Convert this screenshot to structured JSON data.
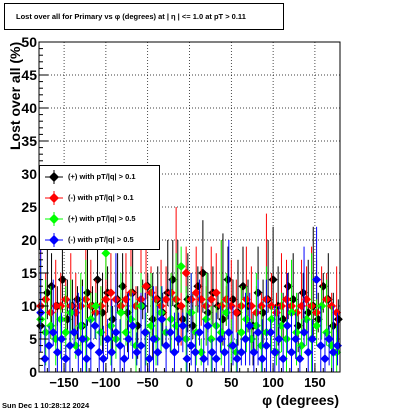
{
  "page": {
    "title": "Lost over all for Primary vs φ (degrees) at |  η  | <= 1.0 at pT > 0.11",
    "timestamp": "Sun Dec  1 10:28:12 2024"
  },
  "chart_data": {
    "type": "scatter",
    "xlabel": "φ (degrees)",
    "ylabel": "Lost over all (%)",
    "xlim": [
      -180,
      180
    ],
    "ylim": [
      0,
      50
    ],
    "x_ticks": [
      -150,
      -100,
      -50,
      0,
      50,
      100,
      150
    ],
    "y_ticks": [
      0,
      5,
      10,
      15,
      20,
      25,
      30,
      35,
      40,
      45,
      50
    ],
    "grid": true,
    "legend_position": "left-middle",
    "series": [
      {
        "name": "(+) with pT/|q| > 0.1",
        "color": "#000000",
        "marker": "diamond",
        "points": [
          [
            -178,
            7
          ],
          [
            -170,
            12
          ],
          [
            -165,
            13
          ],
          [
            -158,
            10
          ],
          [
            -152,
            14
          ],
          [
            -146,
            8
          ],
          [
            -140,
            10
          ],
          [
            -134,
            11
          ],
          [
            -128,
            7
          ],
          [
            -122,
            12
          ],
          [
            -116,
            10
          ],
          [
            -110,
            14
          ],
          [
            -104,
            9
          ],
          [
            -98,
            12
          ],
          [
            -92,
            8
          ],
          [
            -86,
            11
          ],
          [
            -80,
            13
          ],
          [
            -74,
            9
          ],
          [
            -68,
            12
          ],
          [
            -62,
            7
          ],
          [
            -56,
            10
          ],
          [
            -50,
            13
          ],
          [
            -44,
            8
          ],
          [
            -38,
            11
          ],
          [
            -32,
            9
          ],
          [
            -26,
            12
          ],
          [
            -20,
            14
          ],
          [
            -14,
            10
          ],
          [
            -8,
            8
          ],
          [
            -2,
            11
          ],
          [
            4,
            7
          ],
          [
            10,
            13
          ],
          [
            16,
            15
          ],
          [
            22,
            9
          ],
          [
            28,
            12
          ],
          [
            34,
            10
          ],
          [
            40,
            8
          ],
          [
            46,
            14
          ],
          [
            52,
            11
          ],
          [
            58,
            9
          ],
          [
            64,
            13
          ],
          [
            70,
            10
          ],
          [
            76,
            7
          ],
          [
            82,
            12
          ],
          [
            88,
            9
          ],
          [
            94,
            11
          ],
          [
            100,
            14
          ],
          [
            106,
            10
          ],
          [
            112,
            8
          ],
          [
            118,
            13
          ],
          [
            124,
            11
          ],
          [
            130,
            7
          ],
          [
            136,
            12
          ],
          [
            142,
            9
          ],
          [
            148,
            10
          ],
          [
            154,
            8
          ],
          [
            160,
            13
          ],
          [
            166,
            11
          ],
          [
            172,
            7
          ],
          [
            178,
            8
          ]
        ]
      },
      {
        "name": "(-) with pT/|q| > 0.1",
        "color": "#ff0000",
        "marker": "diamond",
        "points": [
          [
            -178,
            10
          ],
          [
            -172,
            11
          ],
          [
            -166,
            9
          ],
          [
            -160,
            10
          ],
          [
            -154,
            10
          ],
          [
            -148,
            11
          ],
          [
            -142,
            10
          ],
          [
            -136,
            9
          ],
          [
            -130,
            10
          ],
          [
            -124,
            11
          ],
          [
            -118,
            10
          ],
          [
            -112,
            9
          ],
          [
            -106,
            10
          ],
          [
            -100,
            11
          ],
          [
            -94,
            12
          ],
          [
            -88,
            11
          ],
          [
            -82,
            10
          ],
          [
            -76,
            11
          ],
          [
            -70,
            12
          ],
          [
            -64,
            10
          ],
          [
            -58,
            11
          ],
          [
            -52,
            13
          ],
          [
            -46,
            12
          ],
          [
            -40,
            11
          ],
          [
            -34,
            10
          ],
          [
            -28,
            11
          ],
          [
            -22,
            12
          ],
          [
            -16,
            11
          ],
          [
            -10,
            10
          ],
          [
            -4,
            15
          ],
          [
            2,
            11
          ],
          [
            8,
            12
          ],
          [
            14,
            11
          ],
          [
            20,
            10
          ],
          [
            26,
            11
          ],
          [
            32,
            12
          ],
          [
            38,
            10
          ],
          [
            44,
            11
          ],
          [
            50,
            10
          ],
          [
            56,
            9
          ],
          [
            62,
            10
          ],
          [
            68,
            11
          ],
          [
            74,
            10
          ],
          [
            80,
            9
          ],
          [
            86,
            10
          ],
          [
            92,
            11
          ],
          [
            98,
            10
          ],
          [
            104,
            9
          ],
          [
            110,
            10
          ],
          [
            116,
            11
          ],
          [
            122,
            10
          ],
          [
            128,
            9
          ],
          [
            134,
            10
          ],
          [
            140,
            11
          ],
          [
            146,
            10
          ],
          [
            152,
            9
          ],
          [
            158,
            10
          ],
          [
            164,
            11
          ],
          [
            170,
            10
          ],
          [
            176,
            9
          ]
        ]
      },
      {
        "name": "(+) with pT/|q| > 0.5",
        "color": "#00ff00",
        "marker": "diamond",
        "points": [
          [
            -178,
            8
          ],
          [
            -172,
            6
          ],
          [
            -166,
            7
          ],
          [
            -160,
            5
          ],
          [
            -154,
            8
          ],
          [
            -148,
            6
          ],
          [
            -142,
            9
          ],
          [
            -136,
            4
          ],
          [
            -130,
            7
          ],
          [
            -124,
            5
          ],
          [
            -118,
            8
          ],
          [
            -112,
            10
          ],
          [
            -106,
            6
          ],
          [
            -100,
            18
          ],
          [
            -94,
            7
          ],
          [
            -88,
            5
          ],
          [
            -82,
            9
          ],
          [
            -76,
            6
          ],
          [
            -70,
            8
          ],
          [
            -64,
            4
          ],
          [
            -58,
            10
          ],
          [
            -52,
            6
          ],
          [
            -46,
            7
          ],
          [
            -40,
            5
          ],
          [
            -34,
            9
          ],
          [
            -28,
            6
          ],
          [
            -22,
            8
          ],
          [
            -16,
            7
          ],
          [
            -10,
            16
          ],
          [
            -4,
            5
          ],
          [
            2,
            9
          ],
          [
            8,
            6
          ],
          [
            14,
            3
          ],
          [
            20,
            8
          ],
          [
            26,
            5
          ],
          [
            32,
            7
          ],
          [
            38,
            6
          ],
          [
            44,
            9
          ],
          [
            50,
            4
          ],
          [
            56,
            3
          ],
          [
            62,
            6
          ],
          [
            68,
            8
          ],
          [
            74,
            5
          ],
          [
            80,
            7
          ],
          [
            86,
            4
          ],
          [
            92,
            6
          ],
          [
            98,
            8
          ],
          [
            104,
            3
          ],
          [
            110,
            7
          ],
          [
            116,
            5
          ],
          [
            122,
            9
          ],
          [
            128,
            6
          ],
          [
            134,
            4
          ],
          [
            140,
            8
          ],
          [
            146,
            5
          ],
          [
            152,
            7
          ],
          [
            158,
            10
          ],
          [
            164,
            6
          ],
          [
            170,
            4
          ],
          [
            176,
            3
          ]
        ]
      },
      {
        "name": "(-) with pT/|q| > 0.5",
        "color": "#0000ff",
        "marker": "diamond",
        "points": [
          [
            -178,
            9
          ],
          [
            -173,
            2
          ],
          [
            -168,
            4
          ],
          [
            -163,
            6
          ],
          [
            -158,
            3
          ],
          [
            -153,
            5
          ],
          [
            -148,
            2
          ],
          [
            -143,
            4
          ],
          [
            -138,
            6
          ],
          [
            -133,
            3
          ],
          [
            -128,
            5
          ],
          [
            -123,
            2
          ],
          [
            -118,
            4
          ],
          [
            -113,
            7
          ],
          [
            -108,
            3
          ],
          [
            -103,
            2
          ],
          [
            -98,
            5
          ],
          [
            -93,
            3
          ],
          [
            -88,
            6
          ],
          [
            -83,
            4
          ],
          [
            -78,
            2
          ],
          [
            -73,
            5
          ],
          [
            -68,
            7
          ],
          [
            -63,
            3
          ],
          [
            -58,
            4
          ],
          [
            -53,
            6
          ],
          [
            -48,
            2
          ],
          [
            -43,
            5
          ],
          [
            -38,
            3
          ],
          [
            -33,
            8
          ],
          [
            -28,
            4
          ],
          [
            -23,
            6
          ],
          [
            -18,
            3
          ],
          [
            -13,
            5
          ],
          [
            -8,
            7
          ],
          [
            -3,
            2
          ],
          [
            2,
            4
          ],
          [
            7,
            3
          ],
          [
            12,
            6
          ],
          [
            17,
            2
          ],
          [
            22,
            7
          ],
          [
            27,
            3
          ],
          [
            32,
            2
          ],
          [
            37,
            5
          ],
          [
            42,
            3
          ],
          [
            47,
            6
          ],
          [
            52,
            4
          ],
          [
            57,
            2
          ],
          [
            62,
            3
          ],
          [
            67,
            5
          ],
          [
            72,
            7
          ],
          [
            77,
            3
          ],
          [
            82,
            6
          ],
          [
            87,
            2
          ],
          [
            92,
            4
          ],
          [
            97,
            6
          ],
          [
            102,
            3
          ],
          [
            107,
            5
          ],
          [
            112,
            2
          ],
          [
            117,
            7
          ],
          [
            122,
            3
          ],
          [
            127,
            5
          ],
          [
            132,
            2
          ],
          [
            137,
            6
          ],
          [
            142,
            3
          ],
          [
            147,
            5
          ],
          [
            152,
            14
          ],
          [
            157,
            4
          ],
          [
            162,
            2
          ],
          [
            167,
            5
          ],
          [
            172,
            3
          ],
          [
            177,
            4
          ]
        ]
      }
    ]
  }
}
